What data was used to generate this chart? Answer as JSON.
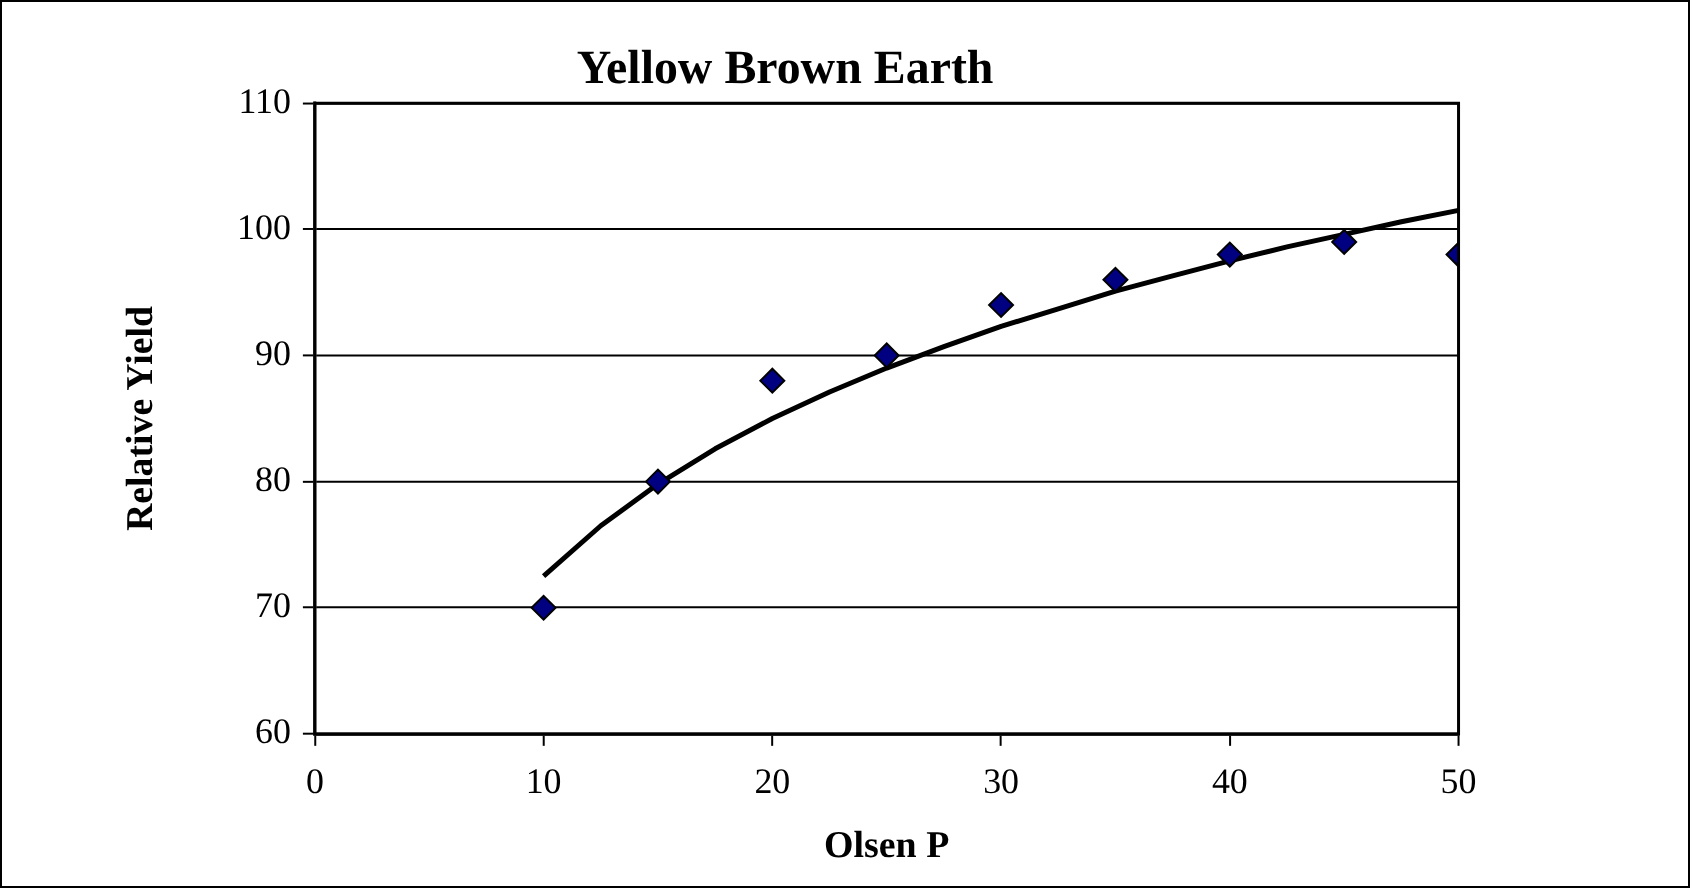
{
  "chart_data": {
    "type": "scatter",
    "title": "Yellow Brown Earth",
    "xlabel": "Olsen P",
    "ylabel": "Relative Yield",
    "xlim": [
      0,
      50
    ],
    "xticks": [
      0,
      10,
      20,
      30,
      40,
      50
    ],
    "ylim": [
      60,
      110
    ],
    "yticks": [
      60,
      70,
      80,
      90,
      100,
      110
    ],
    "grid": "y",
    "legend": false,
    "series": [
      {
        "type": "scatter",
        "color": "#000080",
        "marker": "diamond",
        "x": [
          10,
          15,
          20,
          25,
          30,
          35,
          40,
          45,
          50
        ],
        "values": [
          70,
          80,
          88,
          90,
          94,
          96,
          98,
          99,
          98
        ]
      },
      {
        "type": "line",
        "color": "#000000",
        "marker": "none",
        "line_style": "solid",
        "x": [
          10,
          12.5,
          15,
          17.5,
          20,
          22.5,
          25,
          27.5,
          30,
          32.5,
          35,
          37.5,
          40,
          42.5,
          45,
          47.5,
          50
        ],
        "values": [
          72.5,
          76.5,
          79.8,
          82.6,
          85.0,
          87.1,
          89.0,
          90.7,
          92.3,
          93.7,
          95.1,
          96.3,
          97.5,
          98.6,
          99.6,
          100.6,
          101.5
        ]
      }
    ]
  }
}
